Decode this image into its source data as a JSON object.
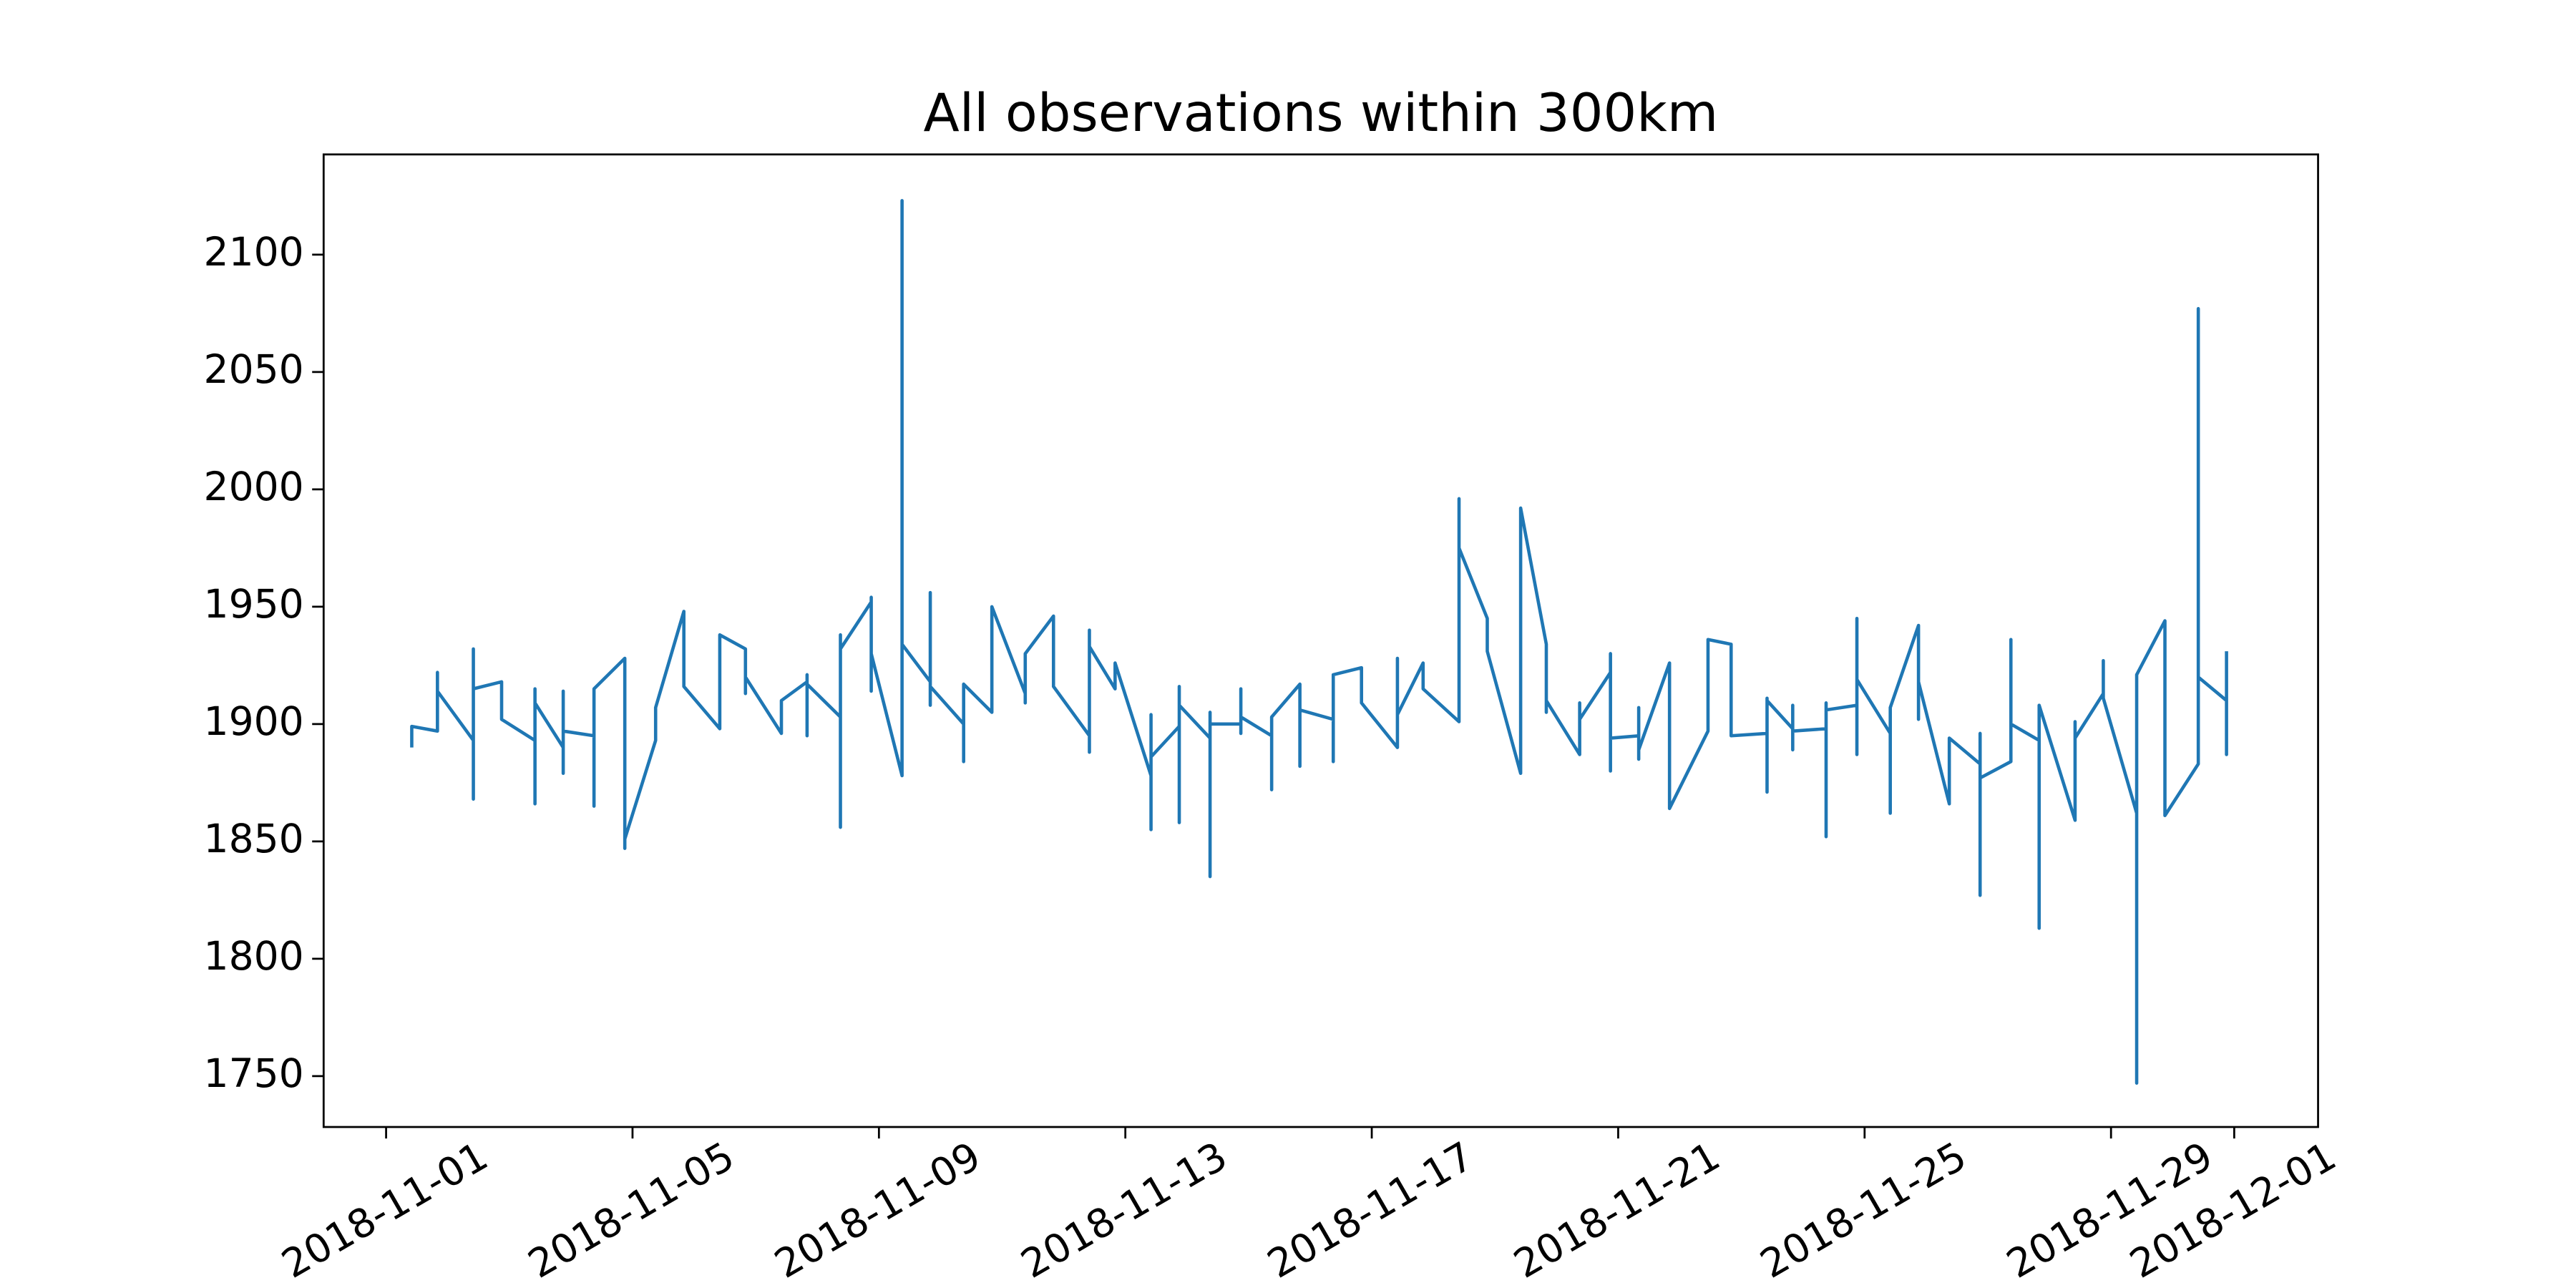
{
  "chart_data": {
    "type": "line",
    "title": "All observations within 300km",
    "x": [
      "2018-11-01 10:00",
      "2018-11-01 10:00",
      "2018-11-01 20:00",
      "2018-11-01 20:00",
      "2018-11-01 20:00",
      "2018-11-02 10:00",
      "2018-11-02 10:00",
      "2018-11-02 10:00",
      "2018-11-02 10:00",
      "2018-11-02 21:00",
      "2018-11-02 21:00",
      "2018-11-03 10:00",
      "2018-11-03 10:00",
      "2018-11-03 10:00",
      "2018-11-03 10:00",
      "2018-11-03 21:00",
      "2018-11-03 21:00",
      "2018-11-03 21:00",
      "2018-11-03 21:00",
      "2018-11-04 09:00",
      "2018-11-04 09:00",
      "2018-11-04 09:00",
      "2018-11-04 21:00",
      "2018-11-04 21:00",
      "2018-11-04 21:00",
      "2018-11-05 09:00",
      "2018-11-05 09:00",
      "2018-11-05 20:00",
      "2018-11-05 20:00",
      "2018-11-06 10:00",
      "2018-11-06 10:00",
      "2018-11-06 20:00",
      "2018-11-06 20:00",
      "2018-11-06 20:00",
      "2018-11-07 10:00",
      "2018-11-07 10:00",
      "2018-11-07 20:00",
      "2018-11-07 20:00",
      "2018-11-07 20:00",
      "2018-11-07 20:00",
      "2018-11-08 09:00",
      "2018-11-08 09:00",
      "2018-11-08 09:00",
      "2018-11-08 09:00",
      "2018-11-08 21:00",
      "2018-11-08 21:00",
      "2018-11-08 21:00",
      "2018-11-08 21:00",
      "2018-11-09 09:00",
      "2018-11-09 09:00",
      "2018-11-09 09:00",
      "2018-11-09 20:00",
      "2018-11-09 20:00",
      "2018-11-09 20:00",
      "2018-11-09 20:00",
      "2018-11-10 09:00",
      "2018-11-10 09:00",
      "2018-11-10 09:00",
      "2018-11-10 20:00",
      "2018-11-10 20:00",
      "2018-11-11 09:00",
      "2018-11-11 09:00",
      "2018-11-11 09:00",
      "2018-11-11 09:00",
      "2018-11-11 20:00",
      "2018-11-11 20:00",
      "2018-11-12 10:00",
      "2018-11-12 10:00",
      "2018-11-12 10:00",
      "2018-11-12 10:00",
      "2018-11-12 20:00",
      "2018-11-12 20:00",
      "2018-11-13 10:00",
      "2018-11-13 10:00",
      "2018-11-13 10:00",
      "2018-11-13 10:00",
      "2018-11-13 21:00",
      "2018-11-13 21:00",
      "2018-11-13 21:00",
      "2018-11-13 21:00",
      "2018-11-14 09:00",
      "2018-11-14 09:00",
      "2018-11-14 09:00",
      "2018-11-14 09:00",
      "2018-11-14 21:00",
      "2018-11-14 21:00",
      "2018-11-14 21:00",
      "2018-11-14 21:00",
      "2018-11-15 09:00",
      "2018-11-15 09:00",
      "2018-11-15 09:00",
      "2018-11-15 20:00",
      "2018-11-15 20:00",
      "2018-11-15 20:00",
      "2018-11-15 20:00",
      "2018-11-16 09:00",
      "2018-11-16 09:00",
      "2018-11-16 09:00",
      "2018-11-16 20:00",
      "2018-11-16 20:00",
      "2018-11-17 10:00",
      "2018-11-17 10:00",
      "2018-11-17 10:00",
      "2018-11-17 20:00",
      "2018-11-17 20:00",
      "2018-11-18 10:00",
      "2018-11-18 10:00",
      "2018-11-18 10:00",
      "2018-11-18 21:00",
      "2018-11-18 21:00",
      "2018-11-19 10:00",
      "2018-11-19 10:00",
      "2018-11-19 20:00",
      "2018-11-19 20:00",
      "2018-11-19 20:00",
      "2018-11-20 09:00",
      "2018-11-20 09:00",
      "2018-11-20 09:00",
      "2018-11-20 21:00",
      "2018-11-20 21:00",
      "2018-11-20 21:00",
      "2018-11-20 21:00",
      "2018-11-21 08:00",
      "2018-11-21 08:00",
      "2018-11-21 08:00",
      "2018-11-21 08:00",
      "2018-11-21 20:00",
      "2018-11-21 20:00",
      "2018-11-22 11:00",
      "2018-11-22 11:00",
      "2018-11-22 20:00",
      "2018-11-22 20:00",
      "2018-11-23 10:00",
      "2018-11-23 10:00",
      "2018-11-23 10:00",
      "2018-11-23 10:00",
      "2018-11-23 20:00",
      "2018-11-23 20:00",
      "2018-11-23 20:00",
      "2018-11-23 20:00",
      "2018-11-24 09:00",
      "2018-11-24 09:00",
      "2018-11-24 09:00",
      "2018-11-24 09:00",
      "2018-11-24 21:00",
      "2018-11-24 21:00",
      "2018-11-24 21:00",
      "2018-11-24 21:00",
      "2018-11-25 10:00",
      "2018-11-25 10:00",
      "2018-11-25 10:00",
      "2018-11-25 21:00",
      "2018-11-25 21:00",
      "2018-11-25 21:00",
      "2018-11-26 09:00",
      "2018-11-26 09:00",
      "2018-11-26 21:00",
      "2018-11-26 21:00",
      "2018-11-26 21:00",
      "2018-11-26 21:00",
      "2018-11-27 09:00",
      "2018-11-27 09:00",
      "2018-11-27 09:00",
      "2018-11-27 09:00",
      "2018-11-27 20:00",
      "2018-11-27 20:00",
      "2018-11-27 20:00",
      "2018-11-28 10:00",
      "2018-11-28 10:00",
      "2018-11-28 10:00",
      "2018-11-28 21:00",
      "2018-11-28 21:00",
      "2018-11-28 21:00",
      "2018-11-29 10:00",
      "2018-11-29 10:00",
      "2018-11-29 10:00",
      "2018-11-29 21:00",
      "2018-11-29 21:00",
      "2018-11-30 10:00",
      "2018-11-30 10:00",
      "2018-11-30 10:00",
      "2018-11-30 21:00",
      "2018-11-30 21:00",
      "2018-11-30 21:00"
    ],
    "series": [
      {
        "color": "#1f77b4",
        "values": [
          1890,
          1899,
          1897,
          1922,
          1914,
          1893,
          1868,
          1932,
          1915,
          1918,
          1902,
          1893,
          1866,
          1915,
          1909,
          1890,
          1879,
          1914,
          1897,
          1895,
          1865,
          1915,
          1928,
          1847,
          1851,
          1893,
          1907,
          1948,
          1916,
          1898,
          1938,
          1932,
          1913,
          1920,
          1896,
          1910,
          1918,
          1895,
          1921,
          1917,
          1903,
          1856,
          1938,
          1932,
          1952,
          1914,
          1954,
          1930,
          1878,
          2123,
          1934,
          1918,
          1908,
          1956,
          1916,
          1900,
          1884,
          1917,
          1905,
          1950,
          1913,
          1909,
          1927,
          1930,
          1946,
          1916,
          1895,
          1888,
          1940,
          1933,
          1915,
          1926,
          1878,
          1855,
          1904,
          1886,
          1899,
          1858,
          1916,
          1908,
          1894,
          1835,
          1905,
          1900,
          1900,
          1896,
          1915,
          1903,
          1895,
          1872,
          1903,
          1917,
          1882,
          1917,
          1906,
          1902,
          1884,
          1921,
          1924,
          1909,
          1890,
          1928,
          1904,
          1926,
          1915,
          1901,
          1996,
          1975,
          1945,
          1931,
          1879,
          1992,
          1934,
          1905,
          1910,
          1887,
          1909,
          1902,
          1922,
          1880,
          1930,
          1894,
          1895,
          1885,
          1907,
          1889,
          1926,
          1864,
          1897,
          1936,
          1934,
          1895,
          1896,
          1871,
          1911,
          1910,
          1898,
          1889,
          1908,
          1897,
          1898,
          1852,
          1909,
          1906,
          1908,
          1887,
          1945,
          1919,
          1896,
          1862,
          1907,
          1942,
          1902,
          1918,
          1866,
          1894,
          1883,
          1827,
          1896,
          1877,
          1884,
          1936,
          1903,
          1900,
          1893,
          1813,
          1908,
          1859,
          1901,
          1894,
          1913,
          1927,
          1911,
          1862,
          1747,
          1921,
          1944,
          1861,
          1883,
          2077,
          1920,
          1910,
          1887,
          1931
        ]
      }
    ],
    "xlim": [
      "2018-10-30 23:40",
      "2018-12-02 08:40"
    ],
    "xticks": [
      "2018-11-01",
      "2018-11-05",
      "2018-11-09",
      "2018-11-13",
      "2018-11-17",
      "2018-11-21",
      "2018-11-25",
      "2018-11-29",
      "2018-12-01"
    ],
    "ylim": [
      1728.3,
      2142.7
    ],
    "yticks": [
      1750,
      1800,
      1850,
      1900,
      1950,
      2000,
      2050,
      2100
    ],
    "grid": false
  }
}
